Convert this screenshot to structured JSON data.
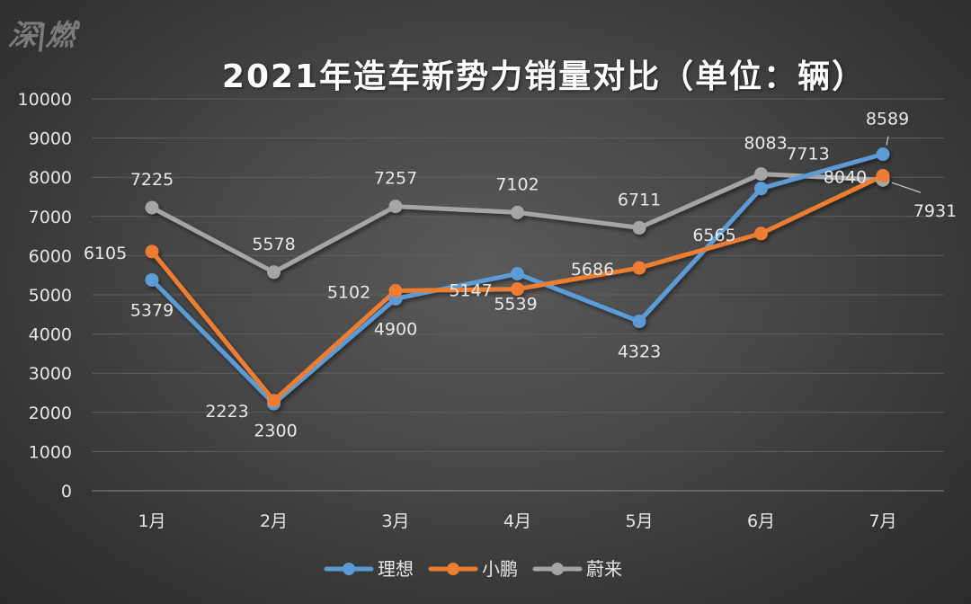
{
  "logo": {
    "text": "深|燃"
  },
  "chart_data": {
    "type": "line",
    "title": "2021年造车新势力销量对比（单位：辆）",
    "xlabel": "",
    "ylabel": "",
    "categories": [
      "1月",
      "2月",
      "3月",
      "4月",
      "5月",
      "6月",
      "7月"
    ],
    "ylim": [
      0,
      10000
    ],
    "yticks": [
      "0",
      "1000",
      "2000",
      "3000",
      "4000",
      "5000",
      "6000",
      "7000",
      "8000",
      "9000",
      "10000"
    ],
    "grid": true,
    "legend_position": "bottom",
    "series": [
      {
        "name": "理想",
        "color": "#5b9bd5",
        "values": [
          5379,
          2223,
          4900,
          5539,
          4323,
          7713,
          8589
        ]
      },
      {
        "name": "小鹏",
        "color": "#ed7d31",
        "values": [
          6105,
          2300,
          5102,
          5147,
          5686,
          6565,
          8040
        ]
      },
      {
        "name": "蔚来",
        "color": "#a5a5a5",
        "values": [
          7225,
          5578,
          7257,
          7102,
          6711,
          8083,
          7931
        ]
      }
    ]
  }
}
